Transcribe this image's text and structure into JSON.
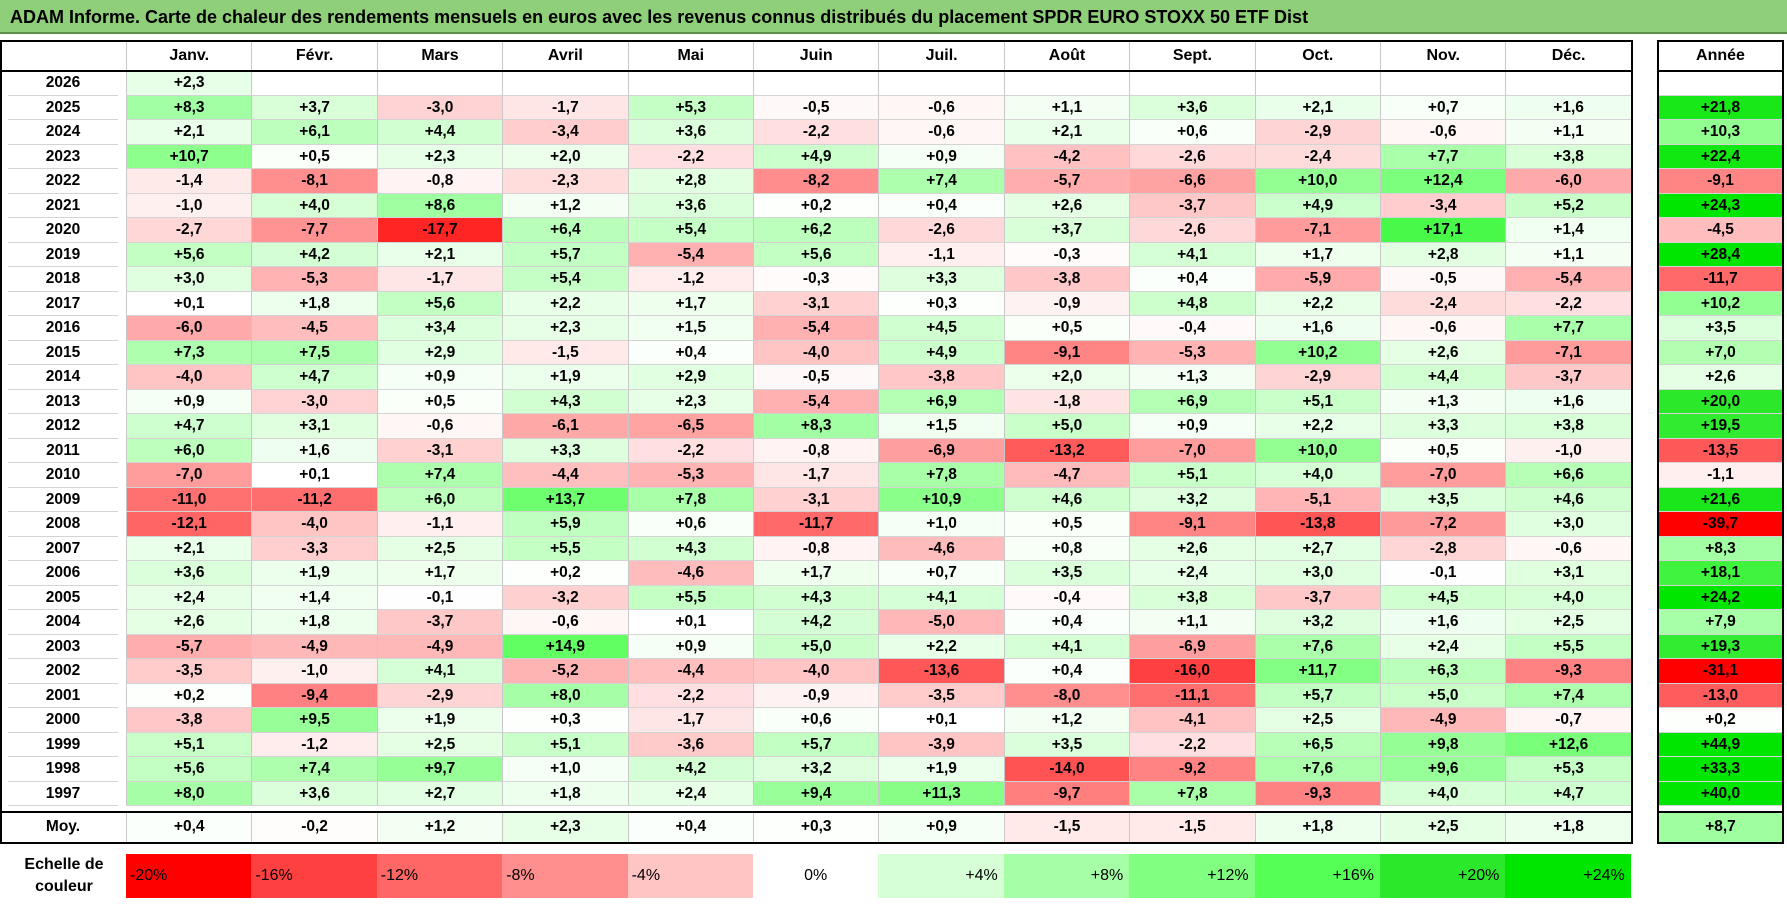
{
  "title": "ADAM Informe. Carte de chaleur des rendements mensuels en euros avec les revenus connus distribués du placement SPDR EURO STOXX 50 ETF Dist",
  "chart_data": {
    "type": "heatmap",
    "months": [
      "Janv.",
      "Févr.",
      "Mars",
      "Avril",
      "Mai",
      "Juin",
      "Juil.",
      "Août",
      "Sept.",
      "Oct.",
      "Nov.",
      "Déc."
    ],
    "annual_label": "Année",
    "rows": [
      {
        "year": "2026",
        "values": [
          "+2,3",
          "",
          "",
          "",
          "",
          "",
          "",
          "",
          "",
          "",
          "",
          ""
        ],
        "annual": ""
      },
      {
        "year": "2025",
        "values": [
          "+8,3",
          "+3,7",
          "-3,0",
          "-1,7",
          "+5,3",
          "-0,5",
          "-0,6",
          "+1,1",
          "+3,6",
          "+2,1",
          "+0,7",
          "+1,6"
        ],
        "annual": "+21,8"
      },
      {
        "year": "2024",
        "values": [
          "+2,1",
          "+6,1",
          "+4,4",
          "-3,4",
          "+3,6",
          "-2,2",
          "-0,6",
          "+2,1",
          "+0,6",
          "-2,9",
          "-0,6",
          "+1,1"
        ],
        "annual": "+10,3"
      },
      {
        "year": "2023",
        "values": [
          "+10,7",
          "+0,5",
          "+2,3",
          "+2,0",
          "-2,2",
          "+4,9",
          "+0,9",
          "-4,2",
          "-2,6",
          "-2,4",
          "+7,7",
          "+3,8"
        ],
        "annual": "+22,4"
      },
      {
        "year": "2022",
        "values": [
          "-1,4",
          "-8,1",
          "-0,8",
          "-2,3",
          "+2,8",
          "-8,2",
          "+7,4",
          "-5,7",
          "-6,6",
          "+10,0",
          "+12,4",
          "-6,0"
        ],
        "annual": "-9,1"
      },
      {
        "year": "2021",
        "values": [
          "-1,0",
          "+4,0",
          "+8,6",
          "+1,2",
          "+3,6",
          "+0,2",
          "+0,4",
          "+2,6",
          "-3,7",
          "+4,9",
          "-3,4",
          "+5,2"
        ],
        "annual": "+24,3"
      },
      {
        "year": "2020",
        "values": [
          "-2,7",
          "-7,7",
          "-17,7",
          "+6,4",
          "+5,4",
          "+6,2",
          "-2,6",
          "+3,7",
          "-2,6",
          "-7,1",
          "+17,1",
          "+1,4"
        ],
        "annual": "-4,5"
      },
      {
        "year": "2019",
        "values": [
          "+5,6",
          "+4,2",
          "+2,1",
          "+5,7",
          "-5,4",
          "+5,6",
          "-1,1",
          "-0,3",
          "+4,1",
          "+1,7",
          "+2,8",
          "+1,1"
        ],
        "annual": "+28,4"
      },
      {
        "year": "2018",
        "values": [
          "+3,0",
          "-5,3",
          "-1,7",
          "+5,4",
          "-1,2",
          "-0,3",
          "+3,3",
          "-3,8",
          "+0,4",
          "-5,9",
          "-0,5",
          "-5,4"
        ],
        "annual": "-11,7"
      },
      {
        "year": "2017",
        "values": [
          "+0,1",
          "+1,8",
          "+5,6",
          "+2,2",
          "+1,7",
          "-3,1",
          "+0,3",
          "-0,9",
          "+4,8",
          "+2,2",
          "-2,4",
          "-2,2"
        ],
        "annual": "+10,2"
      },
      {
        "year": "2016",
        "values": [
          "-6,0",
          "-4,5",
          "+3,4",
          "+2,3",
          "+1,5",
          "-5,4",
          "+4,5",
          "+0,5",
          "-0,4",
          "+1,6",
          "-0,6",
          "+7,7"
        ],
        "annual": "+3,5"
      },
      {
        "year": "2015",
        "values": [
          "+7,3",
          "+7,5",
          "+2,9",
          "-1,5",
          "+0,4",
          "-4,0",
          "+4,9",
          "-9,1",
          "-5,3",
          "+10,2",
          "+2,6",
          "-7,1"
        ],
        "annual": "+7,0"
      },
      {
        "year": "2014",
        "values": [
          "-4,0",
          "+4,7",
          "+0,9",
          "+1,9",
          "+2,9",
          "-0,5",
          "-3,8",
          "+2,0",
          "+1,3",
          "-2,9",
          "+4,4",
          "-3,7"
        ],
        "annual": "+2,6"
      },
      {
        "year": "2013",
        "values": [
          "+0,9",
          "-3,0",
          "+0,5",
          "+4,3",
          "+2,3",
          "-5,4",
          "+6,9",
          "-1,8",
          "+6,9",
          "+5,1",
          "+1,3",
          "+1,6"
        ],
        "annual": "+20,0"
      },
      {
        "year": "2012",
        "values": [
          "+4,7",
          "+3,1",
          "-0,6",
          "-6,1",
          "-6,5",
          "+8,3",
          "+1,5",
          "+5,0",
          "+0,9",
          "+2,2",
          "+3,3",
          "+3,8"
        ],
        "annual": "+19,5"
      },
      {
        "year": "2011",
        "values": [
          "+6,0",
          "+1,6",
          "-3,1",
          "+3,3",
          "-2,2",
          "-0,8",
          "-6,9",
          "-13,2",
          "-7,0",
          "+10,0",
          "+0,5",
          "-1,0"
        ],
        "annual": "-13,5"
      },
      {
        "year": "2010",
        "values": [
          "-7,0",
          "+0,1",
          "+7,4",
          "-4,4",
          "-5,3",
          "-1,7",
          "+7,8",
          "-4,7",
          "+5,1",
          "+4,0",
          "-7,0",
          "+6,6"
        ],
        "annual": "-1,1"
      },
      {
        "year": "2009",
        "values": [
          "-11,0",
          "-11,2",
          "+6,0",
          "+13,7",
          "+7,8",
          "-3,1",
          "+10,9",
          "+4,6",
          "+3,2",
          "-5,1",
          "+3,5",
          "+4,6"
        ],
        "annual": "+21,6"
      },
      {
        "year": "2008",
        "values": [
          "-12,1",
          "-4,0",
          "-1,1",
          "+5,9",
          "+0,6",
          "-11,7",
          "+1,0",
          "+0,5",
          "-9,1",
          "-13,8",
          "-7,2",
          "+3,0"
        ],
        "annual": "-39,7"
      },
      {
        "year": "2007",
        "values": [
          "+2,1",
          "-3,3",
          "+2,5",
          "+5,5",
          "+4,3",
          "-0,8",
          "-4,6",
          "+0,8",
          "+2,6",
          "+2,7",
          "-2,8",
          "-0,6"
        ],
        "annual": "+8,3"
      },
      {
        "year": "2006",
        "values": [
          "+3,6",
          "+1,9",
          "+1,7",
          "+0,2",
          "-4,6",
          "+1,7",
          "+0,7",
          "+3,5",
          "+2,4",
          "+3,0",
          "-0,1",
          "+3,1"
        ],
        "annual": "+18,1"
      },
      {
        "year": "2005",
        "values": [
          "+2,4",
          "+1,4",
          "-0,1",
          "-3,2",
          "+5,5",
          "+4,3",
          "+4,1",
          "-0,4",
          "+3,8",
          "-3,7",
          "+4,5",
          "+4,0"
        ],
        "annual": "+24,2"
      },
      {
        "year": "2004",
        "values": [
          "+2,6",
          "+1,8",
          "-3,7",
          "-0,6",
          "+0,1",
          "+4,2",
          "-5,0",
          "+0,4",
          "+1,1",
          "+3,2",
          "+1,6",
          "+2,5"
        ],
        "annual": "+7,9"
      },
      {
        "year": "2003",
        "values": [
          "-5,7",
          "-4,9",
          "-4,9",
          "+14,9",
          "+0,9",
          "+5,0",
          "+2,2",
          "+4,1",
          "-6,9",
          "+7,6",
          "+2,4",
          "+5,5"
        ],
        "annual": "+19,3"
      },
      {
        "year": "2002",
        "values": [
          "-3,5",
          "-1,0",
          "+4,1",
          "-5,2",
          "-4,4",
          "-4,0",
          "-13,6",
          "+0,4",
          "-16,0",
          "+11,7",
          "+6,3",
          "-9,3"
        ],
        "annual": "-31,1"
      },
      {
        "year": "2001",
        "values": [
          "+0,2",
          "-9,4",
          "-2,9",
          "+8,0",
          "-2,2",
          "-0,9",
          "-3,5",
          "-8,0",
          "-11,1",
          "+5,7",
          "+5,0",
          "+7,4"
        ],
        "annual": "-13,0"
      },
      {
        "year": "2000",
        "values": [
          "-3,8",
          "+9,5",
          "+1,9",
          "+0,3",
          "-1,7",
          "+0,6",
          "+0,1",
          "+1,2",
          "-4,1",
          "+2,5",
          "-4,9",
          "-0,7"
        ],
        "annual": "+0,2"
      },
      {
        "year": "1999",
        "values": [
          "+5,1",
          "-1,2",
          "+2,5",
          "+5,1",
          "-3,6",
          "+5,7",
          "-3,9",
          "+3,5",
          "-2,2",
          "+6,5",
          "+9,8",
          "+12,6"
        ],
        "annual": "+44,9"
      },
      {
        "year": "1998",
        "values": [
          "+5,6",
          "+7,4",
          "+9,7",
          "+1,0",
          "+4,2",
          "+3,2",
          "+1,9",
          "-14,0",
          "-9,2",
          "+7,6",
          "+9,6",
          "+5,3"
        ],
        "annual": "+33,3"
      },
      {
        "year": "1997",
        "values": [
          "+8,0",
          "+3,6",
          "+2,7",
          "+1,8",
          "+2,4",
          "+9,4",
          "+11,3",
          "-9,7",
          "+7,8",
          "-9,3",
          "+4,0",
          "+4,7"
        ],
        "annual": "+40,0"
      }
    ],
    "average": {
      "label": "Moy.",
      "values": [
        "+0,4",
        "-0,2",
        "+1,2",
        "+2,3",
        "+0,4",
        "+0,3",
        "+0,9",
        "-1,5",
        "-1,5",
        "+1,8",
        "+2,5",
        "+1,8"
      ],
      "annual": "+8,7"
    },
    "scale": {
      "label_line1": "Echelle de",
      "label_line2": "couleur",
      "steps": [
        {
          "text": "-20%",
          "value": -20,
          "color": "#ff0000"
        },
        {
          "text": "-16%",
          "value": -16,
          "color": "#ff4040"
        },
        {
          "text": "-12%",
          "value": -12,
          "color": "#ff6666"
        },
        {
          "text": "-8%",
          "value": -8,
          "color": "#ff8f8f"
        },
        {
          "text": "-4%",
          "value": -4,
          "color": "#ffc4c4"
        },
        {
          "text": "0%",
          "value": 0,
          "color": "#ffffff"
        },
        {
          "text": "+4%",
          "value": 4,
          "color": "#d6ffd6"
        },
        {
          "text": "+8%",
          "value": 8,
          "color": "#a6ffa6"
        },
        {
          "text": "+12%",
          "value": 12,
          "color": "#80ff80"
        },
        {
          "text": "+16%",
          "value": 16,
          "color": "#55ff55"
        },
        {
          "text": "+20%",
          "value": 20,
          "color": "#2be82b"
        },
        {
          "text": "+24%",
          "value": 24,
          "color": "#00e600"
        }
      ]
    }
  }
}
